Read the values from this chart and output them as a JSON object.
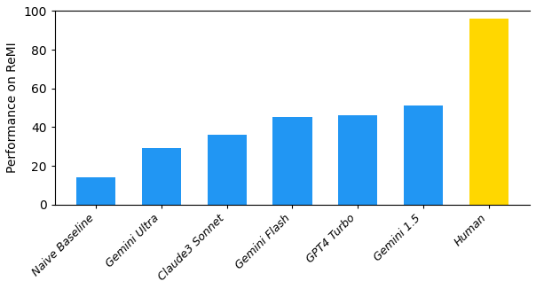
{
  "categories": [
    "Naive Baseline",
    "Gemini Ultra",
    "Claude3 Sonnet",
    "Gemini Flash",
    "GPT4 Turbo",
    "Gemini 1.5",
    "Human"
  ],
  "values": [
    14,
    29,
    36,
    45,
    46,
    51,
    96
  ],
  "bar_colors": [
    "#2196F3",
    "#2196F3",
    "#2196F3",
    "#2196F3",
    "#2196F3",
    "#2196F3",
    "#FFD700"
  ],
  "ylabel": "Performance on ReMI",
  "ylim": [
    0,
    100
  ],
  "yticks": [
    0,
    20,
    40,
    60,
    80,
    100
  ],
  "background_color": "#ffffff",
  "figsize": [
    6.04,
    3.26
  ],
  "dpi": 100
}
